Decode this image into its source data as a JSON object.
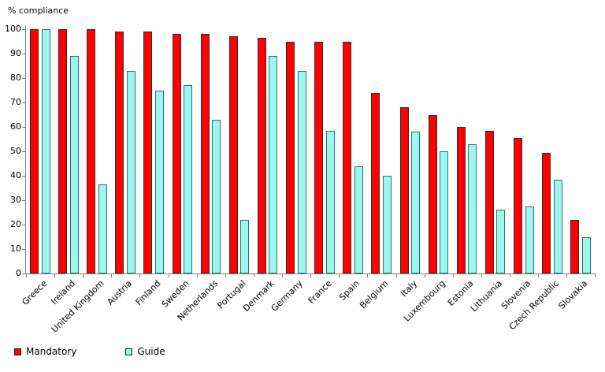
{
  "chart_data": {
    "type": "bar",
    "title": "",
    "ylabel": "% compliance",
    "xlabel": "",
    "ylim": [
      0,
      100
    ],
    "ytick_step": 10,
    "grid": false,
    "legend_position": "bottom-left",
    "categories": [
      "Greece",
      "Ireland",
      "United Kingdom",
      "Austria",
      "Finland",
      "Sweden",
      "Netherlands",
      "Portugal",
      "Denmark",
      "Germany",
      "France",
      "Spain",
      "Belgium",
      "Italy",
      "Luxembourg",
      "Estonia",
      "Lithuania",
      "Slovenia",
      "Czech Republic",
      "Slovakia"
    ],
    "series": [
      {
        "name": "Mandatory",
        "color": "#fe0000",
        "values": [
          100,
          100,
          100,
          99,
          99,
          98,
          98,
          97,
          96.5,
          95,
          95,
          95,
          74,
          68,
          65,
          60,
          58.5,
          55.5,
          49.5,
          22
        ]
      },
      {
        "name": "Guide",
        "color": "#99f8f0",
        "values": [
          100,
          89,
          36.5,
          83,
          75,
          77,
          63,
          22,
          89,
          83,
          58.5,
          44,
          40,
          58,
          50,
          53,
          26,
          27.5,
          38.5,
          15
        ]
      }
    ]
  },
  "axis": {
    "y_ticks": [
      0,
      10,
      20,
      30,
      40,
      50,
      60,
      70,
      80,
      90,
      100
    ]
  },
  "legend": {
    "mandatory_label": "Mandatory",
    "guide_label": "Guide"
  }
}
